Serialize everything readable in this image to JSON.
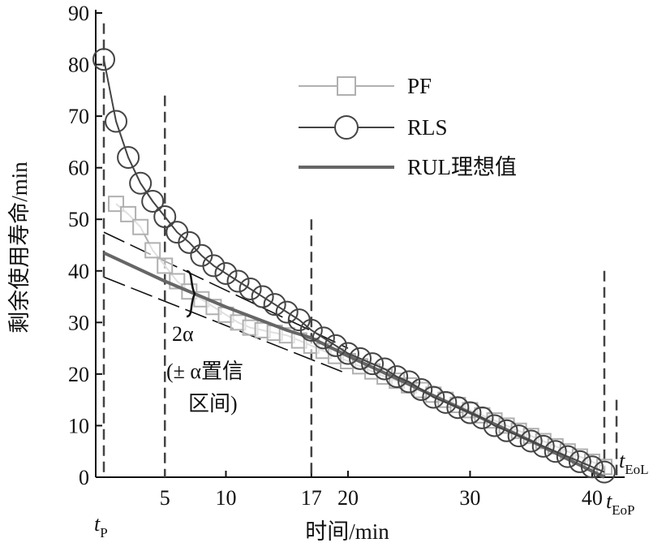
{
  "chart_data": {
    "type": "line",
    "xlabel": "时间/min",
    "ylabel": "剩余使用寿命/min",
    "xlim": [
      0,
      42
    ],
    "ylim": [
      0,
      90
    ],
    "xticks": [
      "5",
      "10",
      "17",
      "20",
      "30",
      "40"
    ],
    "xtick_values": [
      5,
      10,
      17,
      20,
      30,
      40
    ],
    "yticks": [
      "0",
      "10",
      "20",
      "30",
      "40",
      "50",
      "60",
      "70",
      "80",
      "90"
    ],
    "ytick_values": [
      0,
      10,
      20,
      30,
      40,
      50,
      60,
      70,
      80,
      90
    ],
    "grid": false,
    "legend_position": "top-right",
    "series": [
      {
        "name": "PF",
        "color": "#b0b0b0",
        "marker": "square",
        "x": [
          1,
          2,
          3,
          4,
          5,
          6,
          7,
          8,
          9,
          10,
          11,
          12,
          13,
          14,
          15,
          16,
          17,
          18,
          19,
          20,
          21,
          22,
          23,
          24,
          25,
          26,
          27,
          28,
          29,
          30,
          31,
          32,
          33,
          34,
          35,
          36,
          37,
          38,
          39,
          40,
          41
        ],
        "y": [
          53,
          51,
          48.5,
          44,
          41,
          38,
          36,
          34.5,
          33,
          31.5,
          30,
          29,
          28.5,
          28,
          27.5,
          26.5,
          25.5,
          24.5,
          23.5,
          22.5,
          21.5,
          20.5,
          19.5,
          18.7,
          17.8,
          16.9,
          16,
          15,
          14,
          13,
          12,
          11,
          10,
          9,
          8,
          7,
          6,
          5,
          4,
          3,
          2
        ]
      },
      {
        "name": "RLS",
        "color": "#444444",
        "marker": "circle",
        "x": [
          0,
          1,
          2,
          3,
          4,
          5,
          6,
          7,
          8,
          9,
          10,
          11,
          12,
          13,
          14,
          15,
          16,
          17,
          18,
          19,
          20,
          21,
          22,
          23,
          24,
          25,
          26,
          27,
          28,
          29,
          30,
          31,
          32,
          33,
          34,
          35,
          36,
          37,
          38,
          39,
          40,
          41
        ],
        "y": [
          81,
          69,
          62,
          57,
          53.5,
          50.5,
          47.5,
          45.5,
          43,
          41,
          39.5,
          38,
          36.5,
          35,
          33.5,
          32,
          30.5,
          28.5,
          27,
          25.5,
          24,
          23,
          22,
          21,
          19.5,
          18.5,
          17,
          15.5,
          14.5,
          13.5,
          12.5,
          11.5,
          10,
          9,
          8,
          7,
          6,
          5,
          4,
          3,
          2,
          1
        ]
      },
      {
        "name": "RUL理想值",
        "color": "#666666",
        "marker": "none",
        "x": [
          0,
          5,
          10,
          15,
          17,
          20,
          25,
          30,
          35,
          41
        ],
        "y": [
          43.5,
          38,
          33,
          28.5,
          27,
          23.5,
          18,
          12.5,
          7,
          0
        ]
      }
    ],
    "bounds": [
      {
        "x": [
          0,
          20
        ],
        "y": [
          47.5,
          25
        ]
      },
      {
        "x": [
          0,
          20
        ],
        "y": [
          38.8,
          20
        ]
      }
    ],
    "vlines": [
      {
        "x": 0,
        "y_top": 88,
        "label": "t",
        "label_sub": "P"
      },
      {
        "x": 5,
        "y_top": 74
      },
      {
        "x": 17,
        "y_top": 50
      },
      {
        "x": 41,
        "y_top": 40,
        "label": "t",
        "label_sub": "EoP"
      },
      {
        "x": 42,
        "y_top": 15,
        "label": "t",
        "label_sub": "EoL"
      }
    ],
    "annotations": {
      "brace_label": "2α",
      "interval_line1": "(± α置信",
      "interval_line2": "区间)"
    }
  }
}
